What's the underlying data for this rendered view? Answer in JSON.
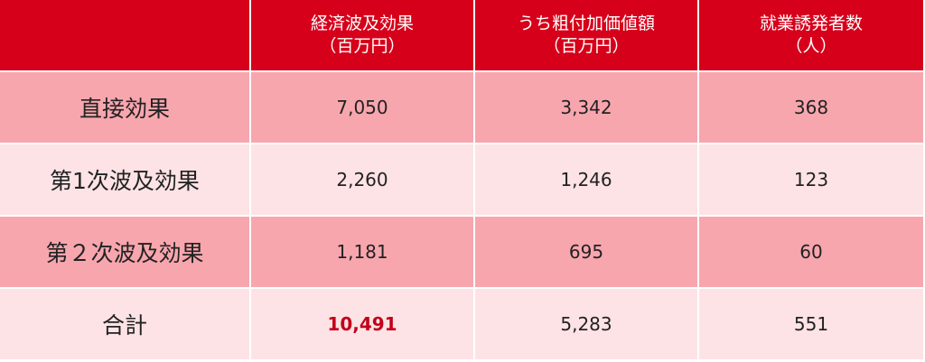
{
  "table": {
    "header": [
      [
        "経済波及効果",
        "（百万円）"
      ],
      [
        "うち粗付加価値額",
        "（百万円）"
      ],
      [
        "就業誘発者数",
        "（人）"
      ]
    ],
    "rows": [
      [
        "直接効果",
        "7,050",
        "3,342",
        "368"
      ],
      [
        "第1次波及効果",
        "2,260",
        "1,246",
        "123"
      ],
      [
        "第２次波及効果",
        "1,181",
        "695",
        "60"
      ],
      [
        "合計",
        "10,491",
        "5,283",
        "551"
      ]
    ]
  }
}
